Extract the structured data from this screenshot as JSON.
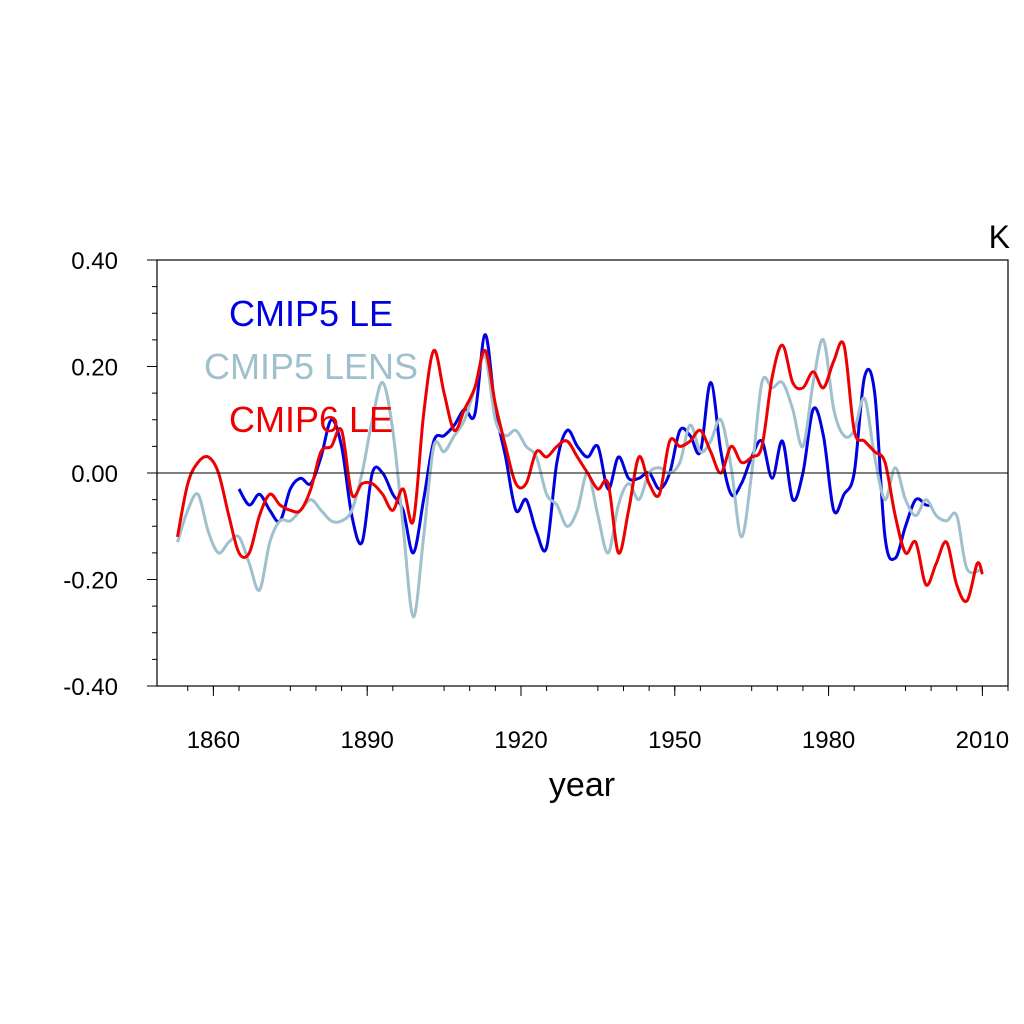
{
  "chart_data": {
    "type": "line",
    "xlabel": "year",
    "unit": "K",
    "xlim": [
      1849,
      2015
    ],
    "ylim": [
      -0.4,
      0.4
    ],
    "x_ticks": [
      1860,
      1890,
      1920,
      1950,
      1980,
      2010
    ],
    "x_tick_labels": [
      "1860",
      "1890",
      "1920",
      "1950",
      "1980",
      "2010"
    ],
    "y_ticks": [
      -0.4,
      -0.2,
      0.0,
      0.2,
      0.4
    ],
    "y_tick_labels": [
      "-0.40",
      "-0.20",
      "0.00",
      "0.20",
      "0.40"
    ],
    "zero_line": true,
    "grid": false,
    "legend_position": "top-left",
    "series": [
      {
        "name": "CMIP5 LE",
        "color": "#0000e0",
        "x": [
          1865,
          1867,
          1869,
          1871,
          1873,
          1875,
          1877,
          1879,
          1881,
          1883,
          1885,
          1887,
          1889,
          1891,
          1893,
          1895,
          1897,
          1899,
          1901,
          1903,
          1905,
          1907,
          1909,
          1911,
          1913,
          1915,
          1917,
          1919,
          1921,
          1923,
          1925,
          1927,
          1929,
          1931,
          1933,
          1935,
          1937,
          1939,
          1941,
          1943,
          1945,
          1947,
          1949,
          1951,
          1953,
          1955,
          1957,
          1959,
          1961,
          1963,
          1965,
          1967,
          1969,
          1971,
          1973,
          1975,
          1977,
          1979,
          1981,
          1983,
          1985,
          1987,
          1989,
          1991,
          1993,
          1995,
          1997,
          1999,
          2000
        ],
        "y": [
          -0.03,
          -0.06,
          -0.04,
          -0.07,
          -0.09,
          -0.03,
          -0.01,
          -0.02,
          0.03,
          0.1,
          0.05,
          -0.08,
          -0.13,
          0.0,
          0.0,
          -0.04,
          -0.07,
          -0.15,
          -0.05,
          0.06,
          0.07,
          0.09,
          0.12,
          0.11,
          0.26,
          0.12,
          0.03,
          -0.07,
          -0.05,
          -0.11,
          -0.14,
          0.02,
          0.08,
          0.05,
          0.03,
          0.05,
          -0.03,
          0.03,
          -0.01,
          -0.01,
          0.0,
          -0.03,
          0.0,
          0.08,
          0.07,
          0.04,
          0.17,
          0.04,
          -0.04,
          -0.02,
          0.03,
          0.06,
          -0.01,
          0.06,
          -0.05,
          0.0,
          0.12,
          0.07,
          -0.07,
          -0.04,
          0.0,
          0.18,
          0.15,
          -0.12,
          -0.16,
          -0.1,
          -0.05,
          -0.06,
          -0.06
        ]
      },
      {
        "name": "CMIP5 LENS",
        "color": "#9fc0cc",
        "x": [
          1853,
          1855,
          1857,
          1859,
          1861,
          1863,
          1865,
          1867,
          1869,
          1871,
          1873,
          1875,
          1877,
          1879,
          1881,
          1883,
          1885,
          1887,
          1889,
          1891,
          1893,
          1895,
          1897,
          1899,
          1901,
          1903,
          1905,
          1907,
          1909,
          1911,
          1913,
          1915,
          1917,
          1919,
          1921,
          1923,
          1925,
          1927,
          1929,
          1931,
          1933,
          1935,
          1937,
          1939,
          1941,
          1943,
          1945,
          1947,
          1949,
          1951,
          1953,
          1955,
          1957,
          1959,
          1961,
          1963,
          1965,
          1967,
          1969,
          1971,
          1973,
          1975,
          1977,
          1979,
          1981,
          1983,
          1985,
          1987,
          1989,
          1991,
          1993,
          1995,
          1997,
          1999,
          2001,
          2003,
          2005,
          2007,
          2010
        ],
        "y": [
          -0.13,
          -0.07,
          -0.04,
          -0.11,
          -0.15,
          -0.13,
          -0.12,
          -0.17,
          -0.22,
          -0.13,
          -0.09,
          -0.09,
          -0.07,
          -0.05,
          -0.07,
          -0.09,
          -0.09,
          -0.07,
          0.0,
          0.1,
          0.17,
          0.08,
          -0.1,
          -0.27,
          -0.12,
          0.05,
          0.04,
          0.07,
          0.1,
          0.16,
          0.22,
          0.1,
          0.07,
          0.08,
          0.05,
          0.03,
          -0.04,
          -0.06,
          -0.1,
          -0.07,
          0.0,
          -0.08,
          -0.15,
          -0.06,
          -0.02,
          -0.05,
          0.0,
          0.01,
          0.0,
          0.02,
          0.09,
          0.04,
          0.06,
          0.1,
          0.01,
          -0.12,
          0.0,
          0.17,
          0.16,
          0.17,
          0.12,
          0.05,
          0.17,
          0.25,
          0.12,
          0.07,
          0.08,
          0.14,
          0.03,
          -0.05,
          0.01,
          -0.05,
          -0.08,
          -0.05,
          -0.08,
          -0.09,
          -0.08,
          -0.18,
          -0.18
        ]
      },
      {
        "name": "CMIP6 LE",
        "color": "#ee0000",
        "x": [
          1853,
          1855,
          1857,
          1859,
          1861,
          1863,
          1865,
          1867,
          1869,
          1871,
          1873,
          1875,
          1877,
          1879,
          1881,
          1883,
          1885,
          1887,
          1889,
          1891,
          1893,
          1895,
          1897,
          1899,
          1901,
          1903,
          1905,
          1907,
          1909,
          1911,
          1913,
          1915,
          1917,
          1919,
          1921,
          1923,
          1925,
          1927,
          1929,
          1931,
          1933,
          1935,
          1937,
          1939,
          1941,
          1943,
          1945,
          1947,
          1949,
          1951,
          1953,
          1955,
          1957,
          1959,
          1961,
          1963,
          1965,
          1967,
          1969,
          1971,
          1973,
          1975,
          1977,
          1979,
          1981,
          1983,
          1985,
          1987,
          1989,
          1991,
          1993,
          1995,
          1997,
          1999,
          2001,
          2003,
          2005,
          2007,
          2009,
          2010
        ],
        "y": [
          -0.12,
          -0.02,
          0.02,
          0.03,
          0.0,
          -0.08,
          -0.15,
          -0.15,
          -0.08,
          -0.04,
          -0.06,
          -0.07,
          -0.07,
          -0.03,
          0.04,
          0.05,
          0.08,
          -0.04,
          -0.02,
          -0.02,
          -0.04,
          -0.07,
          -0.03,
          -0.09,
          0.11,
          0.23,
          0.15,
          0.08,
          0.12,
          0.16,
          0.23,
          0.13,
          0.05,
          -0.02,
          -0.02,
          0.04,
          0.03,
          0.05,
          0.06,
          0.03,
          0.0,
          -0.03,
          -0.02,
          -0.15,
          -0.07,
          0.03,
          -0.02,
          -0.04,
          0.06,
          0.05,
          0.06,
          0.08,
          0.04,
          0.0,
          0.05,
          0.02,
          0.03,
          0.05,
          0.18,
          0.24,
          0.17,
          0.16,
          0.19,
          0.16,
          0.21,
          0.24,
          0.08,
          0.06,
          0.04,
          0.02,
          -0.08,
          -0.15,
          -0.13,
          -0.21,
          -0.17,
          -0.13,
          -0.21,
          -0.24,
          -0.17,
          -0.19
        ]
      }
    ]
  }
}
